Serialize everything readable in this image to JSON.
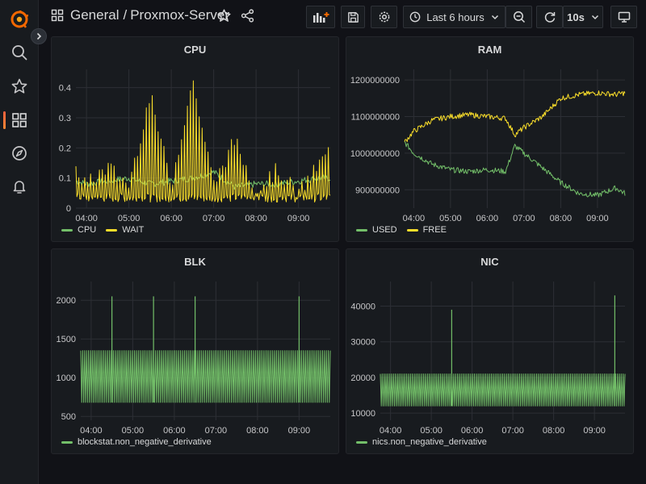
{
  "breadcrumb": {
    "folder": "General",
    "separator": "/",
    "dashboard": "Proxmox-Server"
  },
  "toolbar": {
    "time_range": "Last 6 hours",
    "refresh_interval": "10s"
  },
  "colors": {
    "green": "#73bf69",
    "yellow": "#fade2a",
    "brand": "#f46800"
  },
  "icons": [
    "grafana-logo-icon",
    "search-icon",
    "star-icon",
    "dashboards-icon",
    "explore-compass-icon",
    "alerting-bell-icon",
    "add-panel-icon",
    "save-icon",
    "settings-gear-icon",
    "clock-icon",
    "zoom-out-icon",
    "refresh-icon",
    "tv-mode-icon",
    "share-icon",
    "chevron-right-icon"
  ],
  "panels": [
    {
      "title": "CPU",
      "y_ticks": [
        "0.4",
        "0.3",
        "0.2",
        "0.1",
        "0"
      ],
      "x_ticks": [
        "04:00",
        "05:00",
        "06:00",
        "07:00",
        "08:00",
        "09:00"
      ],
      "legend": [
        "CPU",
        "WAIT"
      ]
    },
    {
      "title": "RAM",
      "y_ticks": [
        "1200000000",
        "1100000000",
        "1000000000",
        "900000000"
      ],
      "x_ticks": [
        "04:00",
        "05:00",
        "06:00",
        "07:00",
        "08:00",
        "09:00"
      ],
      "legend": [
        "USED",
        "FREE"
      ]
    },
    {
      "title": "BLK",
      "y_ticks": [
        "2000",
        "1500",
        "1000",
        "500"
      ],
      "x_ticks": [
        "04:00",
        "05:00",
        "06:00",
        "07:00",
        "08:00",
        "09:00"
      ],
      "legend": [
        "blockstat.non_negative_derivative"
      ]
    },
    {
      "title": "NIC",
      "y_ticks": [
        "40000",
        "30000",
        "20000",
        "10000"
      ],
      "x_ticks": [
        "04:00",
        "05:00",
        "06:00",
        "07:00",
        "08:00",
        "09:00"
      ],
      "legend": [
        "nics.non_negative_derivative"
      ]
    }
  ],
  "chart_data": [
    {
      "type": "line",
      "title": "CPU",
      "x": [
        "03:45",
        "04:00",
        "04:30",
        "05:00",
        "05:30",
        "06:00",
        "06:30",
        "07:00",
        "07:30",
        "08:00",
        "08:30",
        "09:00",
        "09:30",
        "09:45"
      ],
      "ylim": [
        0,
        0.45
      ],
      "series": [
        {
          "name": "CPU",
          "color": "#73bf69",
          "values": [
            0.09,
            0.08,
            0.09,
            0.1,
            0.08,
            0.09,
            0.1,
            0.12,
            0.07,
            0.08,
            0.08,
            0.09,
            0.1,
            0.1
          ]
        },
        {
          "name": "WAIT",
          "color": "#fade2a",
          "values": [
            0.1,
            0.05,
            0.11,
            0.05,
            0.35,
            0.05,
            0.4,
            0.05,
            0.2,
            0.03,
            0.1,
            0.02,
            0.12,
            0.17
          ]
        }
      ]
    },
    {
      "type": "line",
      "title": "RAM",
      "x": [
        "03:45",
        "04:00",
        "04:30",
        "05:00",
        "05:30",
        "06:00",
        "06:30",
        "06:45",
        "07:00",
        "07:30",
        "08:00",
        "08:30",
        "09:00",
        "09:30",
        "09:45"
      ],
      "ylim": [
        850000000,
        1220000000
      ],
      "series": [
        {
          "name": "USED",
          "color": "#73bf69",
          "values": [
            1030000000,
            1000000000,
            970000000,
            955000000,
            950000000,
            955000000,
            950000000,
            1020000000,
            1000000000,
            960000000,
            920000000,
            890000000,
            885000000,
            905000000,
            890000000
          ]
        },
        {
          "name": "FREE",
          "color": "#fade2a",
          "values": [
            1030000000,
            1060000000,
            1090000000,
            1100000000,
            1105000000,
            1100000000,
            1095000000,
            1050000000,
            1070000000,
            1100000000,
            1150000000,
            1160000000,
            1165000000,
            1160000000,
            1165000000
          ]
        }
      ]
    },
    {
      "type": "line",
      "title": "BLK",
      "x": [
        "03:45",
        "04:00",
        "04:30",
        "05:00",
        "05:30",
        "06:00",
        "06:30",
        "07:00",
        "07:30",
        "08:00",
        "08:30",
        "09:00",
        "09:30",
        "09:45"
      ],
      "ylim": [
        450,
        2200
      ],
      "series": [
        {
          "name": "blockstat.non_negative_derivative",
          "color": "#73bf69",
          "values": [
            1350,
            680,
            2050,
            680,
            2050,
            1350,
            2050,
            680,
            1350,
            680,
            1350,
            2050,
            1350,
            680
          ]
        }
      ]
    },
    {
      "type": "line",
      "title": "NIC",
      "x": [
        "03:45",
        "04:00",
        "04:30",
        "05:00",
        "05:30",
        "06:00",
        "06:30",
        "07:00",
        "07:30",
        "08:00",
        "08:30",
        "09:00",
        "09:30",
        "09:45"
      ],
      "ylim": [
        8000,
        46000
      ],
      "series": [
        {
          "name": "nics.non_negative_derivative",
          "color": "#73bf69",
          "values": [
            22000,
            12000,
            22000,
            12000,
            39000,
            12000,
            22000,
            12000,
            22000,
            12000,
            22000,
            12000,
            43000,
            22000
          ]
        }
      ]
    }
  ]
}
